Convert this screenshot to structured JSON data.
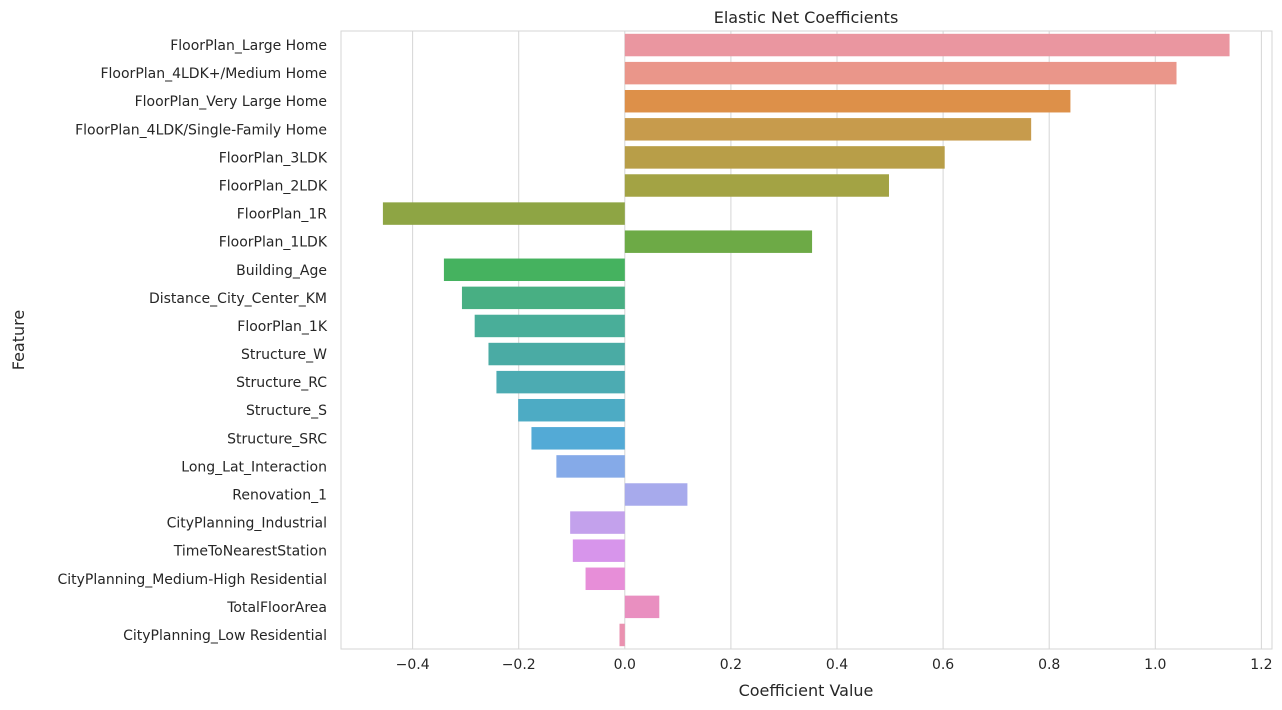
{
  "chart_data": {
    "type": "bar",
    "orientation": "horizontal",
    "title": "Elastic Net Coefficients",
    "xlabel": "Coefficient Value",
    "ylabel": "Feature",
    "xlim": [
      -0.535,
      1.22
    ],
    "xticks": [
      -0.4,
      -0.2,
      0.0,
      0.2,
      0.4,
      0.6,
      0.8,
      1.0,
      1.2
    ],
    "xtick_labels": [
      "−0.4",
      "−0.2",
      "0.0",
      "0.2",
      "0.4",
      "0.6",
      "0.8",
      "1.0",
      "1.2"
    ],
    "grid": true,
    "categories": [
      "FloorPlan_Large Home",
      "FloorPlan_4LDK+/Medium Home",
      "FloorPlan_Very Large Home",
      "FloorPlan_4LDK/Single-Family Home",
      "FloorPlan_3LDK",
      "FloorPlan_2LDK",
      "FloorPlan_1R",
      "FloorPlan_1LDK",
      "Building_Age",
      "Distance_City_Center_KM",
      "FloorPlan_1K",
      "Structure_W",
      "Structure_RC",
      "Structure_S",
      "Structure_SRC",
      "Long_Lat_Interaction",
      "Renovation_1",
      "CityPlanning_Industrial",
      "TimeToNearestStation",
      "CityPlanning_Medium-High Residential",
      "TotalFloorArea",
      "CityPlanning_Low Residential"
    ],
    "values": [
      1.14,
      1.04,
      0.84,
      0.766,
      0.603,
      0.498,
      -0.456,
      0.353,
      -0.341,
      -0.307,
      -0.283,
      -0.257,
      -0.242,
      -0.201,
      -0.176,
      -0.129,
      0.118,
      -0.103,
      -0.098,
      -0.074,
      0.065,
      -0.01
    ],
    "colors": [
      "#ea96a0",
      "#ea968a",
      "#dd9049",
      "#c79b4c",
      "#b89e48",
      "#a3a344",
      "#8ea544",
      "#6daa46",
      "#45b25f",
      "#48af83",
      "#49ae99",
      "#4aaba4",
      "#4cabb2",
      "#4dabc4",
      "#53aad6",
      "#85aae8",
      "#a7aaec",
      "#c3a1ec",
      "#d795eb",
      "#e78ed8",
      "#e98fc0",
      "#ea91b0"
    ]
  }
}
